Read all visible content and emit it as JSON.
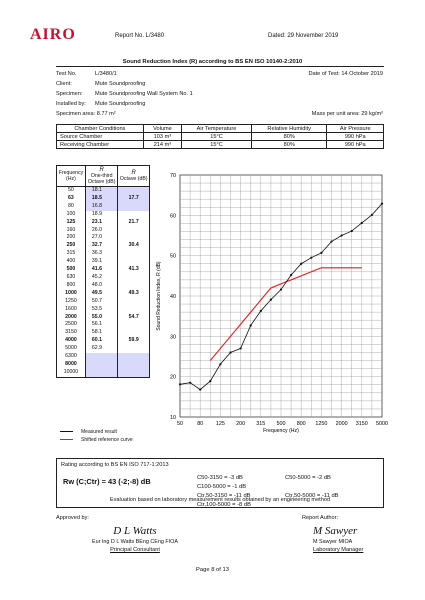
{
  "header": {
    "logo": "AIRO",
    "report_no": "Report No. L/3480",
    "date": "Dated: 29 November 2019"
  },
  "title": "Sound Reduction Index (R) according to BS EN ISO 10140-2:2010",
  "info": {
    "test_no_label": "Test No.",
    "test_no": "L/3480/1",
    "test_date": "Date of Test: 14 October 2019",
    "client_label": "Client:",
    "client": "Mute Soundproofing",
    "specimen_label": "Specimen:",
    "specimen": "Mute Soundproofing Wall System No. 1",
    "installed_label": "Installed by:",
    "installed": "Mute Soundproofing",
    "area": "Specimen area: 8.77 m²",
    "mass": "Mass per unit area: 29 kg/m²"
  },
  "conditions": {
    "headers": [
      "Chamber Conditions",
      "Volume",
      "Air Temperature",
      "Relative Humidity",
      "Air Pressure"
    ],
    "rows": [
      [
        "Source Chamber",
        "103 m³",
        "15°C",
        "80%",
        "990 hPa"
      ],
      [
        "Receiving Chamber",
        "214 m³",
        "15°C",
        "80%",
        "990 hPa"
      ]
    ]
  },
  "freq_table": {
    "h_freq": "Frequency (Hz)",
    "h_r": "R",
    "h_third": "One-third Octave (dB)",
    "h_octave": "Octave (dB)",
    "rows": [
      {
        "f": "50",
        "r": "18.1",
        "o": ""
      },
      {
        "f": "63",
        "r": "18.5",
        "o": "17.7"
      },
      {
        "f": "80",
        "r": "16.8",
        "o": ""
      },
      {
        "f": "100",
        "r": "18.9",
        "o": ""
      },
      {
        "f": "125",
        "r": "23.1",
        "o": "21.7"
      },
      {
        "f": "160",
        "r": "26.0",
        "o": ""
      },
      {
        "f": "200",
        "r": "27.0",
        "o": ""
      },
      {
        "f": "250",
        "r": "32.7",
        "o": "30.4"
      },
      {
        "f": "315",
        "r": "36.3",
        "o": ""
      },
      {
        "f": "400",
        "r": "39.1",
        "o": ""
      },
      {
        "f": "500",
        "r": "41.6",
        "o": "41.3"
      },
      {
        "f": "630",
        "r": "45.2",
        "o": ""
      },
      {
        "f": "800",
        "r": "48.0",
        "o": ""
      },
      {
        "f": "1000",
        "r": "49.5",
        "o": "49.3"
      },
      {
        "f": "1250",
        "r": "50.7",
        "o": ""
      },
      {
        "f": "1600",
        "r": "53.5",
        "o": ""
      },
      {
        "f": "2000",
        "r": "55.0",
        "o": "54.7"
      },
      {
        "f": "2500",
        "r": "56.1",
        "o": ""
      },
      {
        "f": "3150",
        "r": "58.1",
        "o": ""
      },
      {
        "f": "4000",
        "r": "60.1",
        "o": "59.9"
      },
      {
        "f": "5000",
        "r": "62.9",
        "o": ""
      },
      {
        "f": "6300",
        "r": "",
        "o": ""
      },
      {
        "f": "8000",
        "r": "",
        "o": ""
      },
      {
        "f": "10000",
        "r": "",
        "o": ""
      }
    ]
  },
  "chart_data": {
    "type": "line",
    "xlabel": "Frequency (Hz)",
    "ylabel": "Sound Reduction Index, R (dB)",
    "ylim": [
      10,
      70
    ],
    "yticks": [
      10,
      20,
      30,
      40,
      50,
      60,
      70
    ],
    "x": [
      "50",
      "63",
      "80",
      "100",
      "125",
      "160",
      "200",
      "250",
      "315",
      "400",
      "500",
      "630",
      "800",
      "1000",
      "1250",
      "1600",
      "2000",
      "2500",
      "3150",
      "4000",
      "5000"
    ],
    "xtick_labels": [
      "50",
      "80",
      "125",
      "200",
      "315",
      "500",
      "800",
      "1250",
      "2000",
      "3150",
      "5000"
    ],
    "grid": true,
    "series": [
      {
        "name": "Measured result",
        "color": "#111111",
        "values": [
          18.1,
          18.5,
          16.8,
          18.9,
          23.1,
          26.0,
          27.0,
          32.7,
          36.3,
          39.1,
          41.6,
          45.2,
          48.0,
          49.5,
          50.7,
          53.5,
          55.0,
          56.1,
          58.1,
          60.1,
          62.9
        ]
      },
      {
        "name": "Shifted reference curve",
        "color": "#e5191f",
        "x": [
          "100",
          "125",
          "160",
          "200",
          "250",
          "315",
          "400",
          "500",
          "630",
          "800",
          "1000",
          "1250",
          "1600",
          "2000",
          "2500",
          "3150"
        ],
        "values": [
          24,
          27,
          30,
          33,
          36,
          39,
          42,
          43,
          44,
          45,
          46,
          47,
          47,
          47,
          47,
          47
        ]
      }
    ]
  },
  "rating": {
    "header": "Rating according to BS EN ISO 717-1:2013",
    "rw": "Rw (C;Ctr) = 43 (-2;-8) dB",
    "c50_3150": "C50-3150 = -3 dB",
    "c50_5000": "C50-5000 = -2 dB",
    "c100_5000": "C100-5000 = -1 dB",
    "ctr50_3150": "Ctr,50-3150 = -11 dB",
    "ctr50_5000": "Ctr,50-5000 = -11 dB",
    "ctr100_5000": "Ctr,100-5000 = -8 dB",
    "evaluation": "Evaluation based on laboratory measurement results obtained by an engineering method"
  },
  "approved": {
    "label": "Approved by:",
    "signature": "D L Watts",
    "name": "Eur Ing D L Watts BEng CEng FIOA",
    "title": "Principal Consultant"
  },
  "author": {
    "label": "Report Author:",
    "signature": "M Sawyer",
    "name": "M Sawyer MIOA",
    "title": "Laboratory Manager"
  },
  "footer": {
    "page": "Page 8 of 13"
  }
}
